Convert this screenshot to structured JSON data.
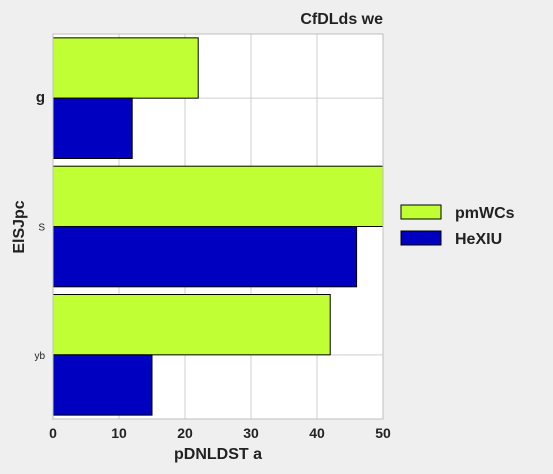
{
  "chart_data": {
    "type": "bar",
    "orientation": "horizontal",
    "title": "CfDLds we",
    "xlabel": "pDNLDST a",
    "ylabel": "ElSJpc",
    "categories": [
      "g",
      "S",
      "yb"
    ],
    "series": [
      {
        "name": "pmWCs",
        "color": "#c0ff33",
        "values": [
          22,
          50,
          42
        ]
      },
      {
        "name": "HeXIU",
        "color": "#0000c0",
        "values": [
          12,
          46,
          15
        ]
      }
    ],
    "xlim": [
      0,
      50
    ],
    "xticks": [
      0,
      10,
      20,
      30,
      40,
      50
    ],
    "grid": true,
    "legend": "right"
  }
}
